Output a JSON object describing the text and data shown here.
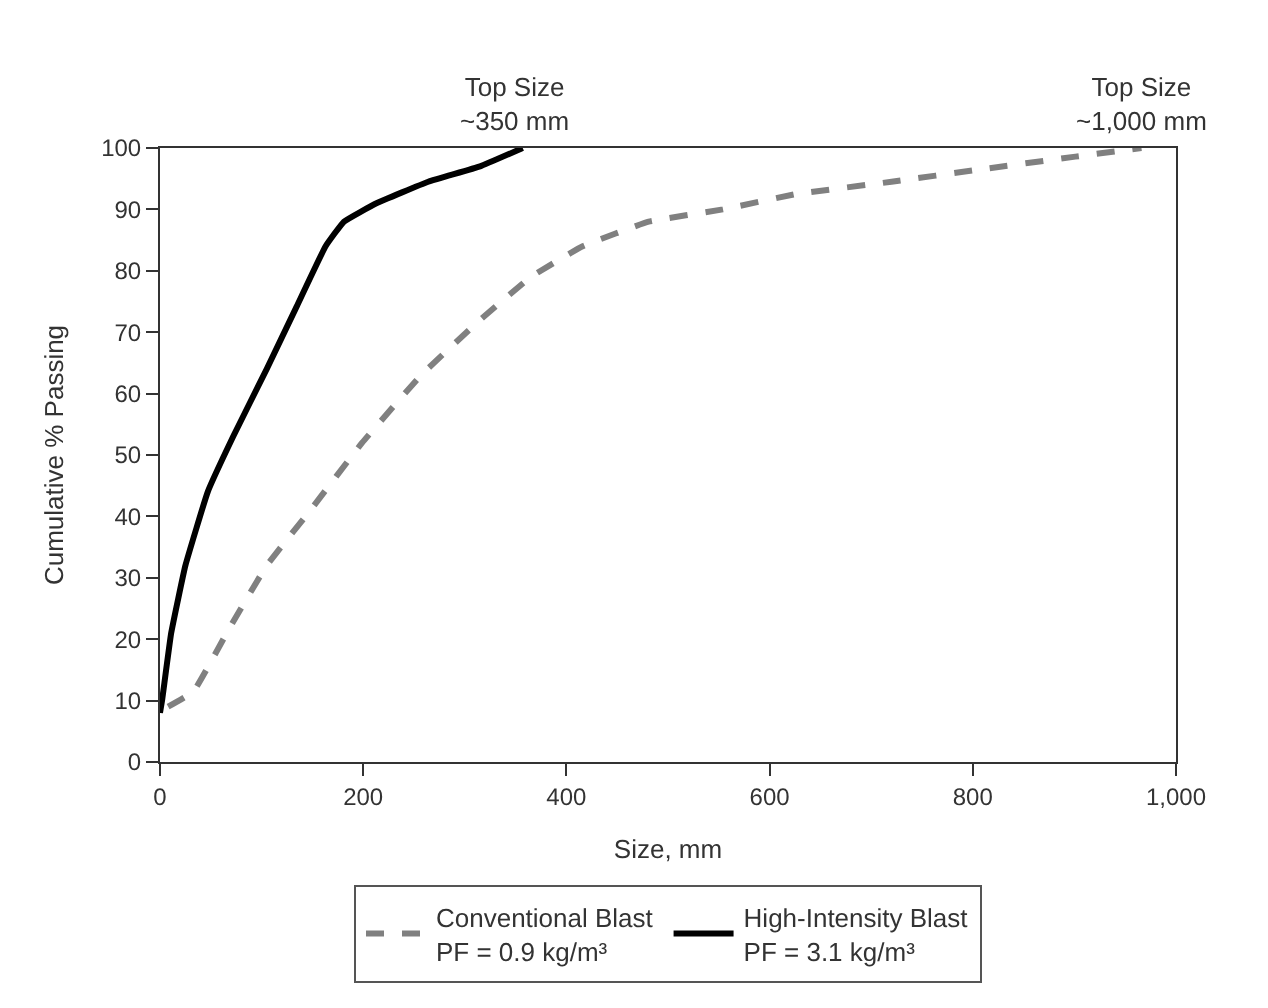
{
  "chart_data": {
    "type": "line",
    "xlabel": "Size, mm",
    "ylabel": "Cumulative % Passing",
    "xlim": [
      0,
      1000
    ],
    "xticks": [
      0,
      200,
      400,
      600,
      800,
      {
        "value": 1000,
        "label": "1,000"
      }
    ],
    "ylim": [
      0,
      100
    ],
    "yticks": [
      0,
      10,
      20,
      30,
      40,
      50,
      60,
      70,
      80,
      90,
      100
    ],
    "legend": "bottom",
    "marker": "none",
    "series": [
      {
        "name": "Conventional Blast\nPF = 0.9 kg/m³",
        "color": "#808080",
        "line_style": "dashed",
        "x": [
          8,
          33,
          69,
          105,
          148,
          199,
          257,
          315,
          365,
          416,
          481,
          554,
          626,
          720,
          807,
          901,
          966
        ],
        "values": [
          9,
          11.5,
          22,
          32,
          41,
          52,
          63,
          72,
          79,
          84,
          88,
          90,
          92.5,
          94.5,
          96.5,
          98.6,
          100
        ]
      },
      {
        "name": "High-Intensity Blast\nPF = 3.1 kg/m³",
        "color": "#000000",
        "line_style": "solid",
        "x": [
          0,
          2,
          11,
          25,
          47,
          72,
          105,
          134,
          163,
          181,
          213,
          264,
          315,
          357
        ],
        "values": [
          8,
          10,
          21,
          32,
          44,
          53,
          64,
          74,
          84,
          88,
          91,
          94.5,
          97,
          100
        ]
      }
    ],
    "annotations": [
      {
        "text": "Top Size\n~350 mm",
        "x": 350,
        "y": 100
      },
      {
        "text": "Top Size\n~1,000 mm",
        "x": 966,
        "y": 100
      }
    ]
  }
}
